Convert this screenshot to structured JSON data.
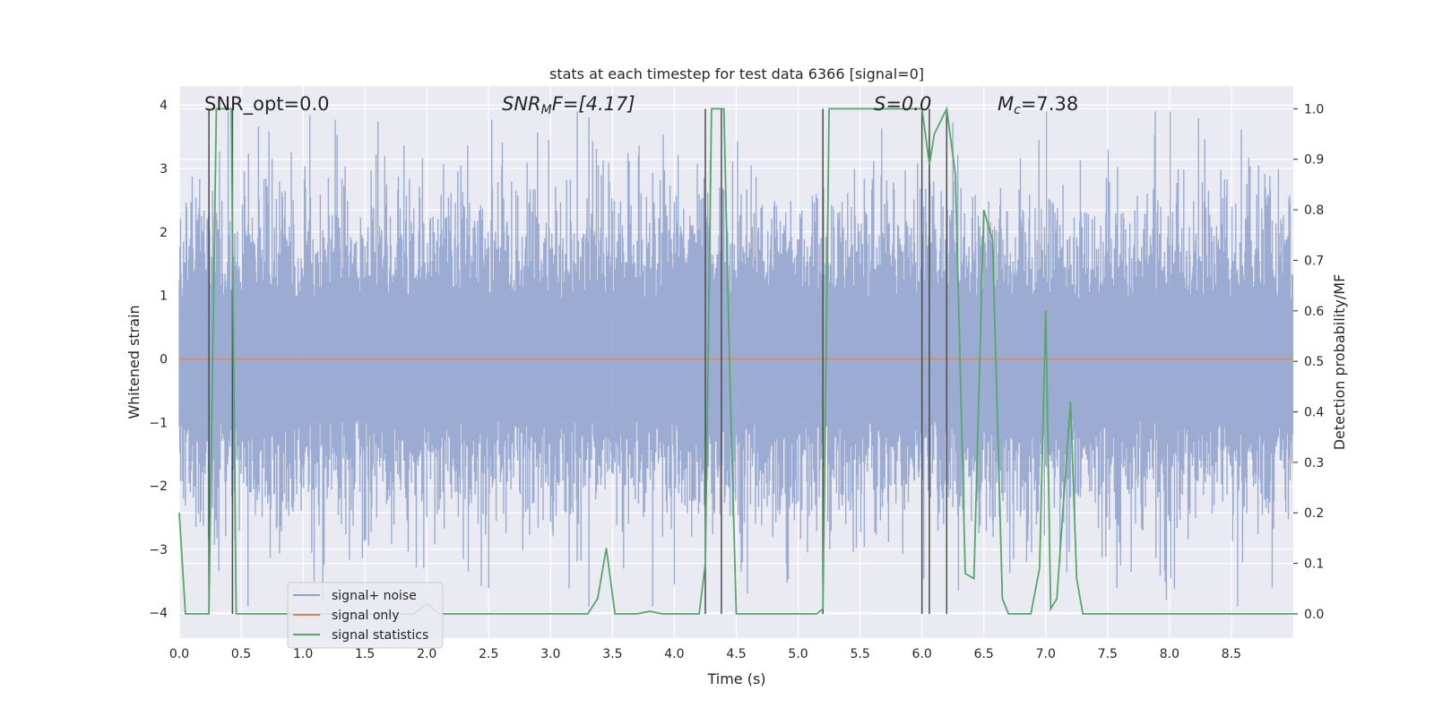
{
  "chart_data": {
    "type": "line",
    "title": "stats at each timestep for test data 6366 [signal=0]",
    "xlabel": "Time (s)",
    "ylabel": "Whitened strain",
    "ylabel_right": "Detection probability/MF",
    "xlim": [
      0.0,
      9.0
    ],
    "ylim": [
      -4.4,
      4.3
    ],
    "ylim_right": [
      -0.048,
      1.045
    ],
    "x_ticks": [
      0.0,
      0.5,
      1.0,
      1.5,
      2.0,
      2.5,
      3.0,
      3.5,
      4.0,
      4.5,
      5.0,
      5.5,
      6.0,
      6.5,
      7.0,
      7.5,
      8.0,
      8.5
    ],
    "x_tick_labels": [
      "0.0",
      "0.5",
      "1.0",
      "1.5",
      "2.0",
      "2.5",
      "3.0",
      "3.5",
      "4.0",
      "4.5",
      "5.0",
      "5.5",
      "6.0",
      "6.5",
      "7.0",
      "7.5",
      "8.0",
      "8.5"
    ],
    "y_ticks": [
      -4,
      -3,
      -2,
      -1,
      0,
      1,
      2,
      3,
      4
    ],
    "y_tick_labels": [
      "−4",
      "−3",
      "−2",
      "−1",
      "0",
      "1",
      "2",
      "3",
      "4"
    ],
    "y_right_ticks": [
      0.0,
      0.1,
      0.2,
      0.3,
      0.4,
      0.5,
      0.6,
      0.7,
      0.8,
      0.9,
      1.0
    ],
    "y_right_tick_labels": [
      "0.0",
      "0.1",
      "0.2",
      "0.3",
      "0.4",
      "0.5",
      "0.6",
      "0.7",
      "0.8",
      "0.9",
      "1.0"
    ],
    "annotations": {
      "snr_opt": "SNR_opt=0.0",
      "snr_mf_main": "SNR",
      "snr_mf_sub": "M",
      "snr_mf_rest": "F=[4.17]",
      "s_stat": "S=0.0",
      "mc_main": "M",
      "mc_sub": "c",
      "mc_rest": "=7.38"
    },
    "legend_position": "lower-left",
    "series": [
      {
        "name": "signal+ noise",
        "label": "signal+ noise",
        "color": "#8da0cb",
        "description": "whitened noisy strain, roughly Gaussian with sigma ~1, sampled densely",
        "envelope": {
          "typical_amplitude": 1.6,
          "peak_amplitude": 3.9
        }
      },
      {
        "name": "signal only",
        "label": "signal only",
        "color": "#dd8452",
        "x": [
          0.0,
          9.0
        ],
        "y": [
          0.0,
          0.0
        ]
      },
      {
        "name": "signal statistics",
        "label": "signal statistics",
        "color": "#55a868",
        "x": [
          0.0,
          0.05,
          0.12,
          0.18,
          0.24,
          0.3,
          0.34,
          0.38,
          0.42,
          0.46,
          0.5,
          0.6,
          0.8,
          1.2,
          1.6,
          1.9,
          2.0,
          2.1,
          2.3,
          2.6,
          3.0,
          3.3,
          3.38,
          3.45,
          3.52,
          3.7,
          3.8,
          3.9,
          4.0,
          4.1,
          4.2,
          4.25,
          4.3,
          4.34,
          4.4,
          4.45,
          4.5,
          4.6,
          4.8,
          5.0,
          5.15,
          5.2,
          5.25,
          5.4,
          5.8,
          6.0,
          6.06,
          6.1,
          6.2,
          6.27,
          6.35,
          6.42,
          6.5,
          6.57,
          6.65,
          6.7,
          6.88,
          6.95,
          7.0,
          7.04,
          7.09,
          7.2,
          7.25,
          7.3,
          7.5,
          8.0,
          8.5,
          9.0
        ],
        "y": [
          0.2,
          0.0,
          0.0,
          0.0,
          0.0,
          1.0,
          1.0,
          1.0,
          1.0,
          0.0,
          0.0,
          0.0,
          0.0,
          0.0,
          0.0,
          0.0,
          0.02,
          0.0,
          0.0,
          0.0,
          0.0,
          0.0,
          0.03,
          0.13,
          0.0,
          0.0,
          0.005,
          0.0,
          0.0,
          0.0,
          0.0,
          0.1,
          1.0,
          1.0,
          1.0,
          0.45,
          0.0,
          0.0,
          0.0,
          0.0,
          0.0,
          0.01,
          1.0,
          1.0,
          1.0,
          1.0,
          0.89,
          0.95,
          1.0,
          0.87,
          0.08,
          0.07,
          0.8,
          0.74,
          0.03,
          0.0,
          0.0,
          0.09,
          0.6,
          0.01,
          0.03,
          0.42,
          0.07,
          0.0,
          0.0,
          0.0,
          0.0,
          0.0
        ]
      }
    ],
    "vertical_lines": [
      0.24,
      0.43,
      4.25,
      4.38,
      5.2,
      6.0,
      6.06,
      6.2
    ]
  }
}
